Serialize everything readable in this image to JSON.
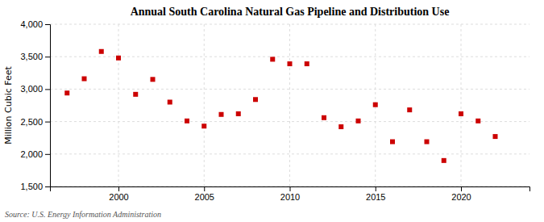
{
  "chart_data": {
    "type": "scatter",
    "title": "Annual South Carolina Natural Gas Pipeline and Distribution Use",
    "ylabel": "Million Cubic Feet",
    "source": "Source: U.S. Energy Information Administration",
    "x": [
      1997,
      1998,
      1999,
      2000,
      2001,
      2002,
      2003,
      2004,
      2005,
      2006,
      2007,
      2008,
      2009,
      2010,
      2011,
      2012,
      2013,
      2014,
      2015,
      2016,
      2017,
      2018,
      2019,
      2020,
      2021,
      2022
    ],
    "values": [
      2940,
      3160,
      3580,
      3480,
      2920,
      3150,
      2800,
      2510,
      2430,
      2610,
      2620,
      2840,
      3460,
      3390,
      3390,
      2560,
      2420,
      2510,
      2760,
      2190,
      2680,
      2190,
      1900,
      2620,
      2510,
      2270
    ],
    "color": "#cc0000",
    "marker": "square",
    "xlim": [
      1996.0,
      2024.0
    ],
    "xticks": [
      2000,
      2005,
      2010,
      2015,
      2020
    ],
    "ylim": [
      1500,
      4000
    ],
    "yticks": [
      {
        "value": 1500,
        "label": "1,500"
      },
      {
        "value": 2000,
        "label": "2,000"
      },
      {
        "value": 2500,
        "label": "2,500"
      },
      {
        "value": 3000,
        "label": "3,000"
      },
      {
        "value": 3500,
        "label": "3,500"
      },
      {
        "value": 4000,
        "label": "4,000"
      }
    ],
    "grid": true
  }
}
